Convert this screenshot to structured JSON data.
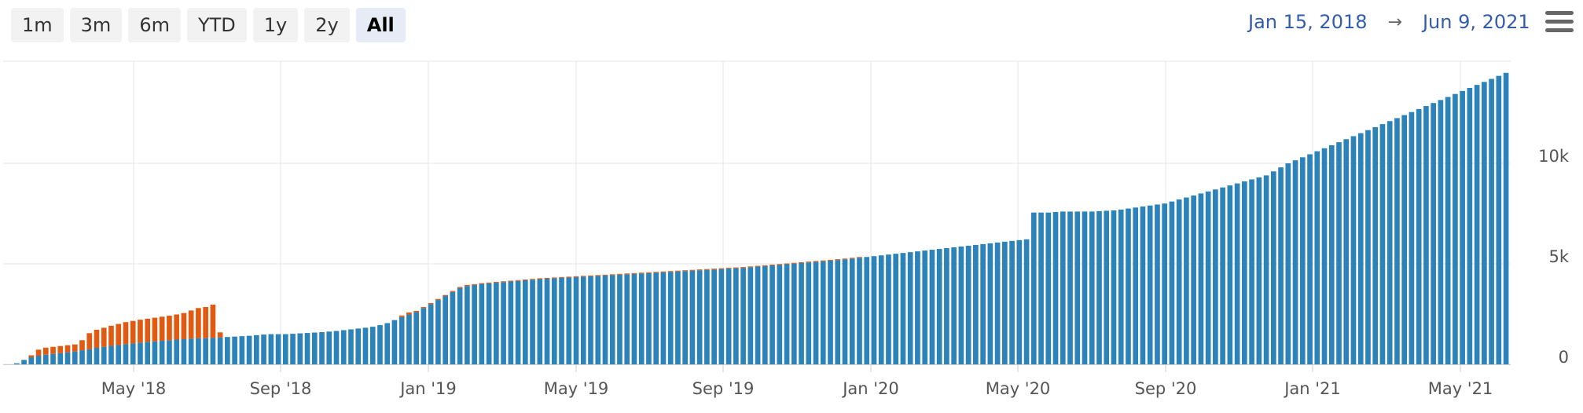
{
  "range_selector": {
    "buttons": [
      "1m",
      "3m",
      "6m",
      "YTD",
      "1y",
      "2y",
      "All"
    ],
    "active": "All"
  },
  "date_range": {
    "from": "Jan 15, 2018",
    "arrow": "→",
    "to": "Jun 9, 2021"
  },
  "icons": {
    "menu": "hamburger-menu-icon"
  },
  "colors": {
    "series_blue": "#2b83ba",
    "series_orange": "#e05a12",
    "grid": "#e6e6e6"
  },
  "chart_data": {
    "type": "bar",
    "stacked": true,
    "x_ticks": [
      "May '18",
      "Sep '18",
      "Jan '19",
      "May '19",
      "Sep '19",
      "Jan '20",
      "May '20",
      "Sep '20",
      "Jan '21",
      "May '21"
    ],
    "y_ticks": [
      "0",
      "5k",
      "10k"
    ],
    "ylim": [
      0,
      15000
    ],
    "grid": true,
    "series": [
      {
        "values": [
          50,
          220,
          350,
          430,
          480,
          520,
          560,
          600,
          640,
          700,
          750,
          820,
          870,
          920,
          960,
          1000,
          1040,
          1080,
          1110,
          1140,
          1170,
          1200,
          1230,
          1250,
          1280,
          1300,
          1300,
          1320,
          1340,
          1360,
          1380,
          1400,
          1420,
          1450,
          1480,
          1500,
          1500,
          1500,
          1520,
          1540,
          1560,
          1580,
          1600,
          1630,
          1660,
          1700,
          1740,
          1780,
          1820,
          1870,
          1950,
          2050,
          2200,
          2350,
          2480,
          2600,
          2800,
          3000,
          3200,
          3400,
          3600,
          3800,
          3900,
          3950,
          4000,
          4030,
          4060,
          4090,
          4120,
          4150,
          4180,
          4210,
          4240,
          4260,
          4280,
          4300,
          4320,
          4340,
          4360,
          4380,
          4400,
          4420,
          4440,
          4460,
          4480,
          4500,
          4520,
          4540,
          4560,
          4580,
          4600,
          4620,
          4640,
          4660,
          4680,
          4700,
          4720,
          4740,
          4760,
          4780,
          4800,
          4830,
          4860,
          4890,
          4920,
          4950,
          4980,
          5010,
          5040,
          5070,
          5100,
          5130,
          5160,
          5190,
          5220,
          5260,
          5300,
          5340,
          5380,
          5420,
          5460,
          5500,
          5540,
          5580,
          5620,
          5660,
          5700,
          5740,
          5780,
          5820,
          5860,
          5900,
          5940,
          5980,
          6020,
          6060,
          6100,
          6140,
          6180,
          6220,
          7550,
          7550,
          7550,
          7580,
          7600,
          7600,
          7600,
          7600,
          7600,
          7620,
          7640,
          7660,
          7700,
          7750,
          7800,
          7850,
          7900,
          7950,
          8000,
          8100,
          8200,
          8300,
          8400,
          8500,
          8600,
          8700,
          8800,
          8900,
          9000,
          9100,
          9200,
          9300,
          9400,
          9600,
          9800,
          10000,
          10150,
          10300,
          10450,
          10600,
          10750,
          10900,
          11050,
          11200,
          11350,
          11500,
          11650,
          11800,
          11950,
          12100,
          12250,
          12400,
          12550,
          12700,
          12850,
          13000,
          13150,
          13300,
          13450,
          13600,
          13750,
          13900,
          14050,
          14200,
          14350,
          14500
        ]
      },
      {
        "values": [
          0,
          0,
          100,
          300,
          350,
          350,
          350,
          350,
          350,
          500,
          800,
          900,
          950,
          1000,
          1050,
          1100,
          1120,
          1140,
          1160,
          1180,
          1200,
          1220,
          1250,
          1300,
          1400,
          1500,
          1550,
          1650,
          250,
          0,
          0,
          0,
          0,
          0,
          0,
          0,
          0,
          0,
          0,
          0,
          0,
          0,
          0,
          0,
          0,
          0,
          0,
          0,
          0,
          0,
          0,
          0,
          0,
          80,
          100,
          60,
          50,
          50,
          50,
          50,
          50,
          50,
          50,
          40,
          40,
          40,
          40,
          40,
          40,
          40,
          40,
          40,
          40,
          40,
          40,
          40,
          40,
          40,
          40,
          40,
          40,
          40,
          40,
          40,
          40,
          40,
          40,
          40,
          40,
          40,
          40,
          40,
          40,
          40,
          40,
          40,
          40,
          40,
          40,
          40,
          40,
          40,
          40,
          40,
          40,
          40,
          40,
          40,
          40,
          40,
          40,
          40,
          40,
          40,
          40,
          40,
          40,
          0,
          0,
          0,
          0,
          0,
          0,
          0,
          0,
          0,
          0,
          0,
          0,
          0,
          0,
          0,
          0,
          0,
          0,
          0,
          0,
          0,
          0,
          0,
          0,
          0,
          0,
          0,
          0,
          0,
          0,
          0,
          0,
          0,
          0,
          0,
          0,
          0,
          0,
          0,
          0,
          0,
          0,
          0,
          0,
          0,
          0,
          0,
          0,
          0,
          0,
          0,
          0,
          0,
          0,
          0,
          0,
          0,
          0,
          0,
          0,
          0,
          0,
          0,
          0,
          0,
          0,
          0,
          0,
          0,
          0,
          0,
          0,
          0,
          0,
          0,
          0,
          0,
          0,
          0,
          0,
          0,
          0,
          0,
          0,
          0,
          0,
          0,
          0,
          0,
          0,
          0,
          0,
          0,
          0,
          0,
          0,
          0,
          0,
          0,
          0,
          0,
          0,
          0,
          0
        ]
      }
    ]
  }
}
